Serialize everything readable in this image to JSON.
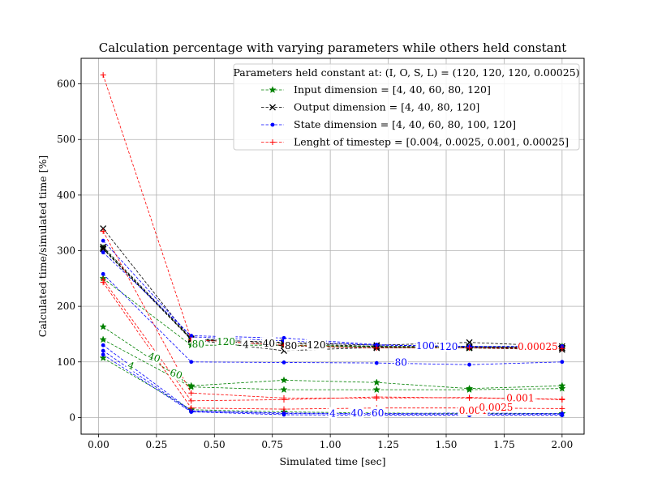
{
  "chart_data": {
    "type": "line",
    "title": "Calculation percentage with varying parameters while others held constant",
    "xlabel": "Simulated time [sec]",
    "ylabel": "Calculated time/simulated time [%]",
    "xlim": [
      -0.075,
      2.095
    ],
    "ylim": [
      -30,
      646
    ],
    "xticks": [
      0.0,
      0.25,
      0.5,
      0.75,
      1.0,
      1.25,
      1.5,
      1.75,
      2.0
    ],
    "xtick_labels": [
      "0.00",
      "0.25",
      "0.50",
      "0.75",
      "1.00",
      "1.25",
      "1.50",
      "1.75",
      "2.00"
    ],
    "yticks": [
      0,
      100,
      200,
      300,
      400,
      500,
      600
    ],
    "ytick_labels": [
      "0",
      "100",
      "200",
      "300",
      "400",
      "500",
      "600"
    ],
    "grid": true,
    "x": [
      0.02,
      0.4,
      0.8,
      1.2,
      1.6,
      2.0
    ],
    "legend": {
      "title": "Parameters held constant at: (I, O, S, L) = (120, 120, 120, 0.00025)",
      "placement": "upper right"
    },
    "series": [
      {
        "group": "Input dimension",
        "legend_label": "Input dimension = [4, 40, 60, 80, 120]",
        "color": "#008000",
        "marker": "star",
        "param": "4",
        "values": [
          107,
          14,
          10,
          8,
          7,
          7
        ]
      },
      {
        "group": "Input dimension",
        "legend_label": "",
        "color": "#008000",
        "marker": "star",
        "param": "40",
        "values": [
          140,
          55,
          50,
          50,
          50,
          52
        ]
      },
      {
        "group": "Input dimension",
        "legend_label": "",
        "color": "#008000",
        "marker": "star",
        "param": "60",
        "values": [
          163,
          57,
          67,
          63,
          52,
          57
        ]
      },
      {
        "group": "Input dimension",
        "legend_label": "",
        "color": "#008000",
        "marker": "star",
        "param": "80",
        "values": [
          250,
          130,
          130,
          128,
          125,
          128
        ]
      },
      {
        "group": "Input dimension",
        "legend_label": "",
        "color": "#008000",
        "marker": "star",
        "param": "120",
        "values": [
          305,
          140,
          130,
          127,
          126,
          126
        ]
      },
      {
        "group": "Output dimension",
        "legend_label": "Output dimension = [4, 40, 80, 120]",
        "color": "#000000",
        "marker": "x",
        "param": "4",
        "values": [
          340,
          140,
          135,
          130,
          135,
          128
        ]
      },
      {
        "group": "Output dimension",
        "legend_label": "",
        "color": "#000000",
        "marker": "x",
        "param": "40",
        "values": [
          307,
          142,
          133,
          128,
          128,
          125
        ]
      },
      {
        "group": "Output dimension",
        "legend_label": "",
        "color": "#000000",
        "marker": "x",
        "param": "80",
        "values": [
          303,
          140,
          120,
          126,
          125,
          122
        ]
      },
      {
        "group": "Output dimension",
        "legend_label": "",
        "color": "#000000",
        "marker": "x",
        "param": "120",
        "values": [
          304,
          141,
          129,
          125,
          126,
          125
        ]
      },
      {
        "group": "State dimension",
        "legend_label": "State dimension = [4, 40, 60, 80, 100, 120]",
        "color": "#0000ff",
        "marker": "dot",
        "param": "4",
        "values": [
          113,
          10,
          5,
          4,
          4,
          4
        ]
      },
      {
        "group": "State dimension",
        "legend_label": "",
        "color": "#0000ff",
        "marker": "dot",
        "param": "40",
        "values": [
          120,
          11,
          7,
          6,
          6,
          6
        ]
      },
      {
        "group": "State dimension",
        "legend_label": "",
        "color": "#0000ff",
        "marker": "dot",
        "param": "60",
        "values": [
          130,
          12,
          8,
          7,
          8,
          7
        ]
      },
      {
        "group": "State dimension",
        "legend_label": "",
        "color": "#0000ff",
        "marker": "dot",
        "param": "80",
        "values": [
          258,
          100,
          99,
          98,
          95,
          100
        ]
      },
      {
        "group": "State dimension",
        "legend_label": "",
        "color": "#0000ff",
        "marker": "dot",
        "param": "100",
        "values": [
          297,
          147,
          143,
          131,
          127,
          128
        ]
      },
      {
        "group": "State dimension",
        "legend_label": "",
        "color": "#0000ff",
        "marker": "dot",
        "param": "120",
        "values": [
          318,
          145,
          138,
          130,
          128,
          128
        ]
      },
      {
        "group": "Lenght of timestep",
        "legend_label": "Lenght of timestep = [0.004, 0.0025, 0.001, 0.00025]",
        "color": "#ff0000",
        "marker": "plus",
        "param": "0.004",
        "values": [
          243,
          17,
          15,
          17,
          17,
          16
        ]
      },
      {
        "group": "Lenght of timestep",
        "legend_label": "",
        "color": "#ff0000",
        "marker": "plus",
        "param": "0.0025",
        "values": [
          248,
          30,
          32,
          37,
          35,
          33
        ]
      },
      {
        "group": "Lenght of timestep",
        "legend_label": "",
        "color": "#ff0000",
        "marker": "plus",
        "param": "0.001",
        "values": [
          335,
          44,
          35,
          35,
          36,
          32
        ]
      },
      {
        "group": "Lenght of timestep",
        "legend_label": "",
        "color": "#ff0000",
        "marker": "plus",
        "param": "0.00025",
        "values": [
          616,
          140,
          130,
          125,
          125,
          124
        ]
      }
    ],
    "inline_labels": [
      {
        "text": "4",
        "color": "#008000",
        "x": 0.14,
        "y": 93,
        "angle": 20
      },
      {
        "text": "40",
        "color": "#008000",
        "x": 0.24,
        "y": 108,
        "angle": 20
      },
      {
        "text": "60",
        "color": "#008000",
        "x": 0.335,
        "y": 78,
        "angle": 20
      },
      {
        "text": "80",
        "color": "#008000",
        "x": 0.43,
        "y": 132,
        "angle": 0
      },
      {
        "text": "120",
        "color": "#008000",
        "x": 0.55,
        "y": 136,
        "angle": 0
      },
      {
        "text": "4",
        "color": "#000000",
        "x": 0.635,
        "y": 131,
        "angle": 0
      },
      {
        "text": "40",
        "color": "#000000",
        "x": 0.735,
        "y": 133,
        "angle": 0
      },
      {
        "text": "80",
        "color": "#000000",
        "x": 0.83,
        "y": 129,
        "angle": 0
      },
      {
        "text": "120",
        "color": "#000000",
        "x": 0.94,
        "y": 130,
        "angle": 0
      },
      {
        "text": "4",
        "color": "#0000ff",
        "x": 1.01,
        "y": 7,
        "angle": 0
      },
      {
        "text": "40",
        "color": "#0000ff",
        "x": 1.115,
        "y": 8,
        "angle": 0
      },
      {
        "text": "60",
        "color": "#0000ff",
        "x": 1.205,
        "y": 8,
        "angle": 0
      },
      {
        "text": "80",
        "color": "#0000ff",
        "x": 1.305,
        "y": 99,
        "angle": 0
      },
      {
        "text": "100",
        "color": "#0000ff",
        "x": 1.41,
        "y": 129,
        "angle": 0
      },
      {
        "text": "120",
        "color": "#0000ff",
        "x": 1.51,
        "y": 127,
        "angle": 0
      },
      {
        "text": "0.004",
        "color": "#ff0000",
        "x": 1.615,
        "y": 12,
        "angle": 0
      },
      {
        "text": "0.0025",
        "color": "#ff0000",
        "x": 1.715,
        "y": 18,
        "angle": 0
      },
      {
        "text": "0.001",
        "color": "#ff0000",
        "x": 1.82,
        "y": 35,
        "angle": 0
      },
      {
        "text": "0.00025",
        "color": "#ff0000",
        "x": 1.895,
        "y": 127,
        "angle": 0
      }
    ]
  }
}
